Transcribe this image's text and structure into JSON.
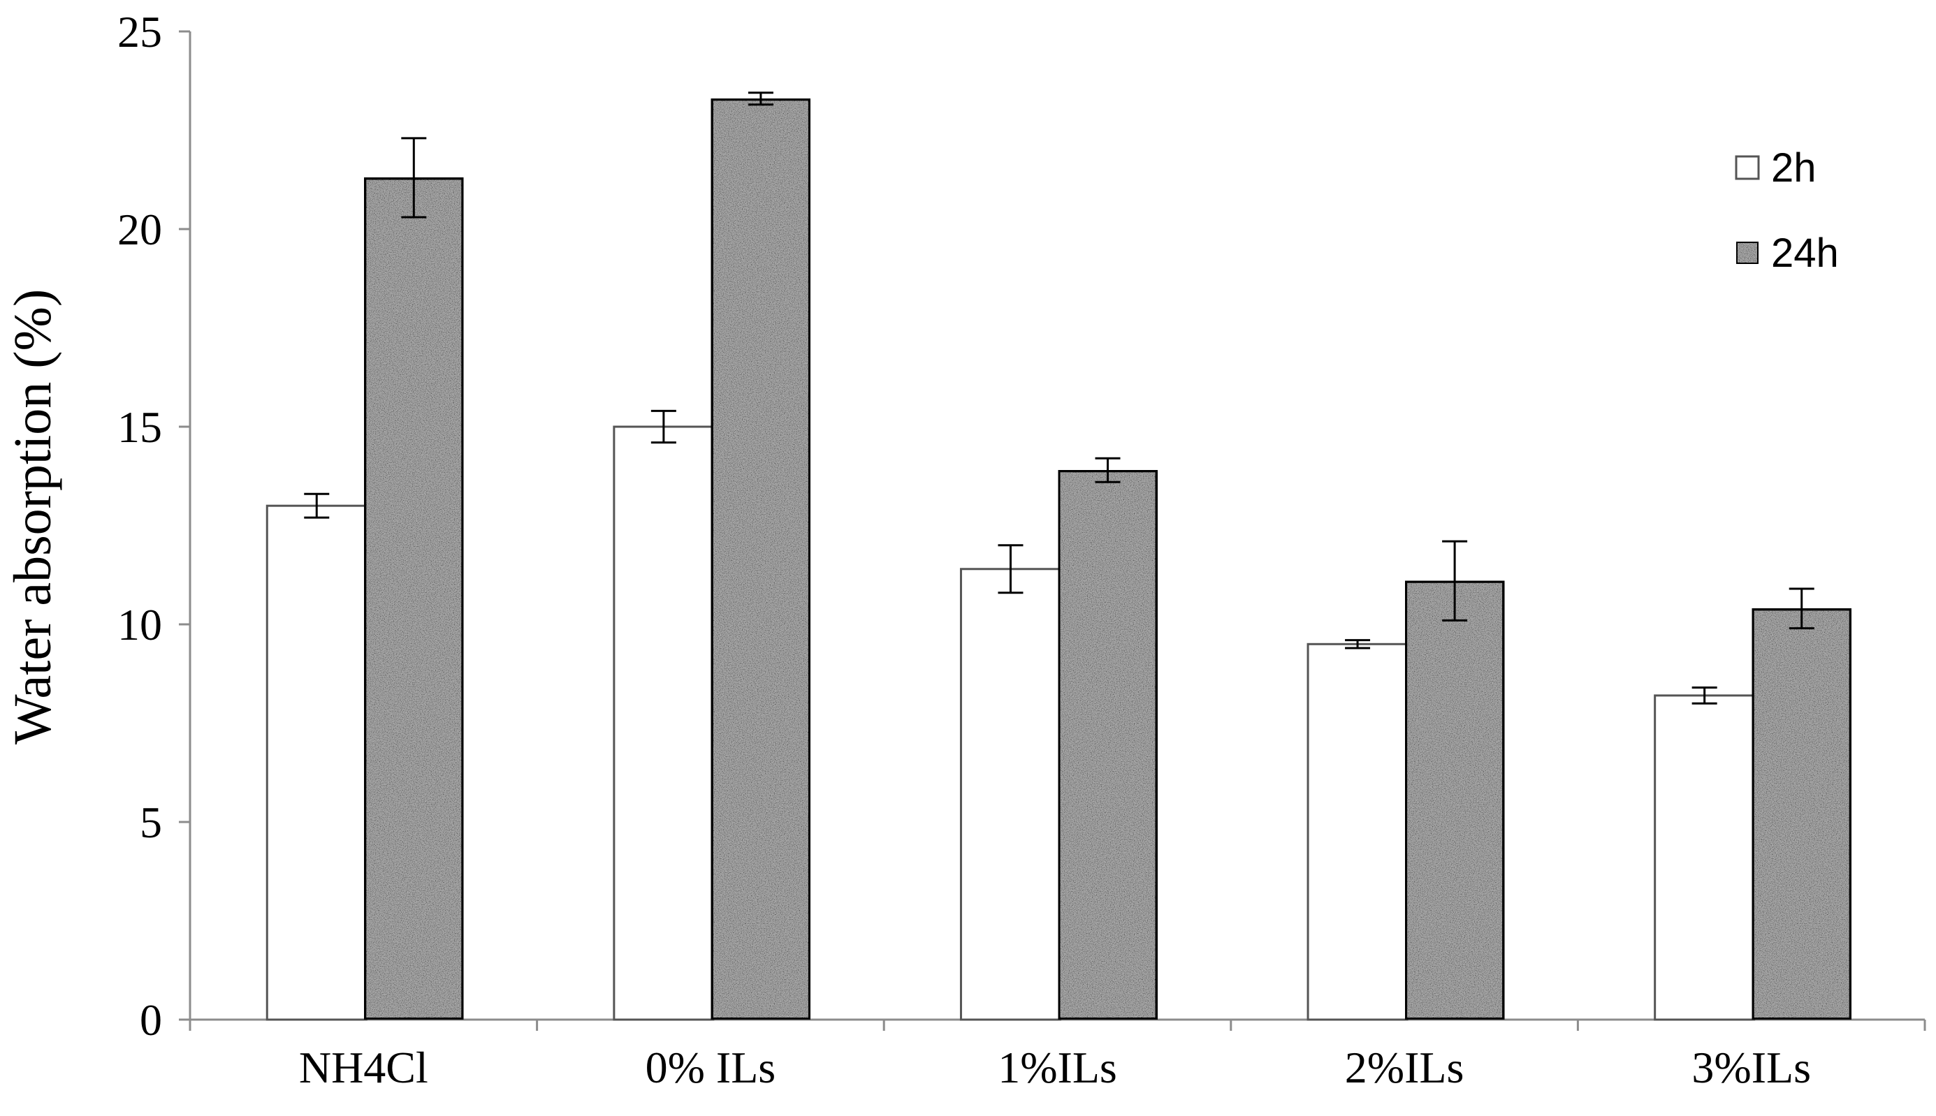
{
  "chart_data": {
    "type": "bar",
    "title": "",
    "xlabel": "",
    "ylabel": "Water absorption (%)",
    "categories": [
      "NH4Cl",
      "0% ILs",
      "1%ILs",
      "2%ILs",
      "3%ILs"
    ],
    "series": [
      {
        "name": "2h",
        "values": [
          13.0,
          15.0,
          11.4,
          9.5,
          8.2
        ],
        "errors": [
          0.3,
          0.4,
          0.6,
          0.1,
          0.2
        ],
        "fill": "#ffffff"
      },
      {
        "name": "24h",
        "values": [
          21.3,
          23.3,
          13.9,
          11.1,
          10.4
        ],
        "errors": [
          1.0,
          0.15,
          0.3,
          1.0,
          0.5
        ],
        "fill": "#a8a8a8"
      }
    ],
    "ylim": [
      0,
      25
    ],
    "yticks": [
      "0",
      "5",
      "10",
      "15",
      "20",
      "25"
    ],
    "grid": false,
    "legend_position": "top-right"
  }
}
